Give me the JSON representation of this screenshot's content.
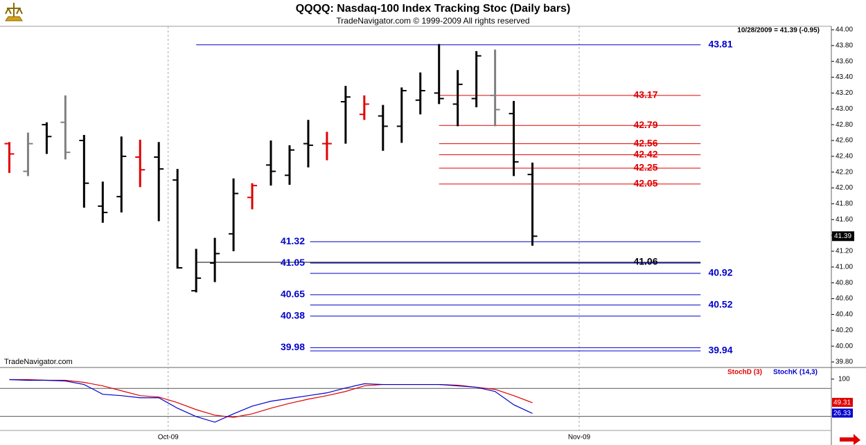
{
  "chart_data": [
    {
      "type": "ohlc",
      "title": "QQQQ:  Nasdaq-100 Index Tracking Stoc  (Daily bars)",
      "subtitle": "TradeNavigator.com © 1999-2009 All rights reserved",
      "header_note": "10/28/2009 = 41.39 (-0.95)",
      "watermark": "TradeNavigator.com",
      "xlim": [
        -0.5,
        44
      ],
      "xticks": [
        {
          "value": 8.5,
          "label": "Oct-09"
        },
        {
          "value": 30.5,
          "label": "Nov-09"
        }
      ],
      "ylim": [
        39.8,
        44.0
      ],
      "yticks": [
        {
          "value": 39.8,
          "label": "39.80"
        },
        {
          "value": 40.0,
          "label": "40.00"
        },
        {
          "value": 40.2,
          "label": "40.20"
        },
        {
          "value": 40.4,
          "label": "40.40"
        },
        {
          "value": 40.6,
          "label": "40.60"
        },
        {
          "value": 40.8,
          "label": "40.80"
        },
        {
          "value": 41.0,
          "label": "41.00"
        },
        {
          "value": 41.2,
          "label": "41.20"
        },
        {
          "value": 41.4,
          "label": "41.40"
        },
        {
          "value": 41.6,
          "label": "41.60"
        },
        {
          "value": 41.8,
          "label": "41.80"
        },
        {
          "value": 42.0,
          "label": "42.00"
        },
        {
          "value": 42.2,
          "label": "42.20"
        },
        {
          "value": 42.4,
          "label": "42.40"
        },
        {
          "value": 42.6,
          "label": "42.60"
        },
        {
          "value": 42.8,
          "label": "42.80"
        },
        {
          "value": 43.0,
          "label": "43.00"
        },
        {
          "value": 43.2,
          "label": "43.20"
        },
        {
          "value": 43.4,
          "label": "43.40"
        },
        {
          "value": 43.6,
          "label": "43.60"
        },
        {
          "value": 43.8,
          "label": "43.80"
        },
        {
          "value": 44.0,
          "label": "44.00"
        }
      ],
      "open": [
        42.56,
        42.21,
        42.8,
        42.83,
        42.6,
        41.77,
        41.89,
        42.39,
        42.39,
        42.1,
        40.7,
        41.05,
        41.42,
        41.88,
        42.29,
        42.16,
        42.56,
        42.56,
        43.09,
        42.93,
        42.91,
        42.78,
        43.11,
        43.2,
        43.06,
        43.13,
        43.17,
        42.94,
        42.17
      ],
      "high": [
        42.58,
        42.7,
        42.83,
        43.17,
        42.67,
        42.08,
        42.65,
        42.61,
        42.58,
        42.24,
        41.23,
        41.37,
        42.12,
        42.06,
        42.6,
        42.54,
        42.86,
        42.71,
        43.29,
        43.17,
        43.05,
        43.27,
        43.46,
        43.82,
        43.49,
        43.73,
        43.75,
        43.1,
        42.32
      ],
      "low": [
        42.19,
        42.15,
        42.43,
        42.36,
        41.75,
        41.56,
        41.69,
        42.01,
        41.58,
        40.98,
        40.68,
        40.81,
        41.2,
        41.73,
        42.03,
        42.04,
        42.26,
        42.35,
        42.56,
        42.86,
        42.47,
        42.57,
        42.93,
        43.06,
        42.78,
        43.02,
        42.78,
        42.15,
        41.27
      ],
      "close": [
        42.43,
        42.56,
        42.65,
        42.45,
        42.06,
        41.69,
        42.4,
        42.23,
        42.24,
        40.99,
        40.86,
        41.17,
        41.93,
        42.03,
        42.21,
        42.48,
        42.54,
        42.56,
        43.15,
        43.06,
        42.78,
        43.23,
        43.23,
        43.13,
        43.31,
        43.67,
        42.99,
        42.33,
        41.39
      ],
      "colors": [
        "#e00000",
        "#808080",
        "#000000",
        "#808080",
        "#000000",
        "#000000",
        "#000000",
        "#e00000",
        "#000000",
        "#000000",
        "#000000",
        "#000000",
        "#000000",
        "#e00000",
        "#000000",
        "#000000",
        "#000000",
        "#e00000",
        "#000000",
        "#e00000",
        "#000000",
        "#000000",
        "#000000",
        "#000000",
        "#000000",
        "#000000",
        "#808080",
        "#000000",
        "#000000"
      ],
      "levels": [
        {
          "value": 43.81,
          "color": "#0000cc",
          "x_start": 10,
          "x_end": 37,
          "label_at": "right"
        },
        {
          "value": 43.17,
          "color": "#e00000",
          "x_start": 23,
          "x_end": 37,
          "label_at": "inner"
        },
        {
          "value": 42.79,
          "color": "#e00000",
          "x_start": 23,
          "x_end": 37,
          "label_at": "inner"
        },
        {
          "value": 42.56,
          "color": "#e00000",
          "x_start": 23,
          "x_end": 37,
          "label_at": "inner"
        },
        {
          "value": 42.42,
          "color": "#e00000",
          "x_start": 23,
          "x_end": 37,
          "label_at": "inner"
        },
        {
          "value": 42.25,
          "color": "#e00000",
          "x_start": 23,
          "x_end": 37,
          "label_at": "inner"
        },
        {
          "value": 42.05,
          "color": "#e00000",
          "x_start": 23,
          "x_end": 37,
          "label_at": "inner"
        },
        {
          "value": 41.32,
          "color": "#0000cc",
          "x_start": 16.1,
          "x_end": 37,
          "label_at": "left"
        },
        {
          "value": 41.06,
          "color": "#000000",
          "x_start": 10,
          "x_end": 37,
          "label_at": "inner"
        },
        {
          "value": 41.05,
          "color": "#0000cc",
          "x_start": 16.1,
          "x_end": 37,
          "label_at": "left"
        },
        {
          "value": 40.92,
          "color": "#0000cc",
          "x_start": 16.1,
          "x_end": 37,
          "label_at": "right"
        },
        {
          "value": 40.65,
          "color": "#0000cc",
          "x_start": 16.1,
          "x_end": 37,
          "label_at": "left"
        },
        {
          "value": 40.52,
          "color": "#0000cc",
          "x_start": 16.1,
          "x_end": 37,
          "label_at": "right"
        },
        {
          "value": 40.38,
          "color": "#0000cc",
          "x_start": 16.1,
          "x_end": 37,
          "label_at": "left"
        },
        {
          "value": 39.98,
          "color": "#0000cc",
          "x_start": 16.1,
          "x_end": 37,
          "label_at": "left"
        },
        {
          "value": 39.94,
          "color": "#0000cc",
          "x_start": 16.1,
          "x_end": 37,
          "label_at": "right"
        }
      ]
    },
    {
      "type": "line",
      "xlim": [
        -0.5,
        44
      ],
      "ylim": [
        -40,
        122
      ],
      "yticks": [
        100
      ],
      "reference_lines": [
        80,
        20
      ],
      "series": [
        {
          "name": "StochD (3)",
          "color": "#e00000",
          "values": [
            99,
            99,
            97.5,
            97.5,
            93,
            85.5,
            75,
            64.5,
            61.5,
            49.5,
            34.5,
            22.5,
            18,
            25.5,
            37.5,
            48,
            57,
            64.5,
            73.5,
            85.5,
            88.5,
            88.5,
            88.5,
            88.5,
            87,
            82.5,
            78,
            64.5,
            49.31
          ]
        },
        {
          "name": "StochK (14,3)",
          "color": "#0000cc",
          "values": [
            99,
            97.5,
            97.5,
            96,
            88.5,
            67.5,
            64.5,
            60,
            60,
            37.5,
            19.5,
            7.5,
            25.5,
            42,
            52.5,
            58.5,
            64.5,
            70.5,
            81,
            90,
            88.5,
            88.5,
            88.5,
            88.5,
            85.5,
            82.5,
            73.5,
            45,
            26.33
          ]
        }
      ]
    }
  ]
}
